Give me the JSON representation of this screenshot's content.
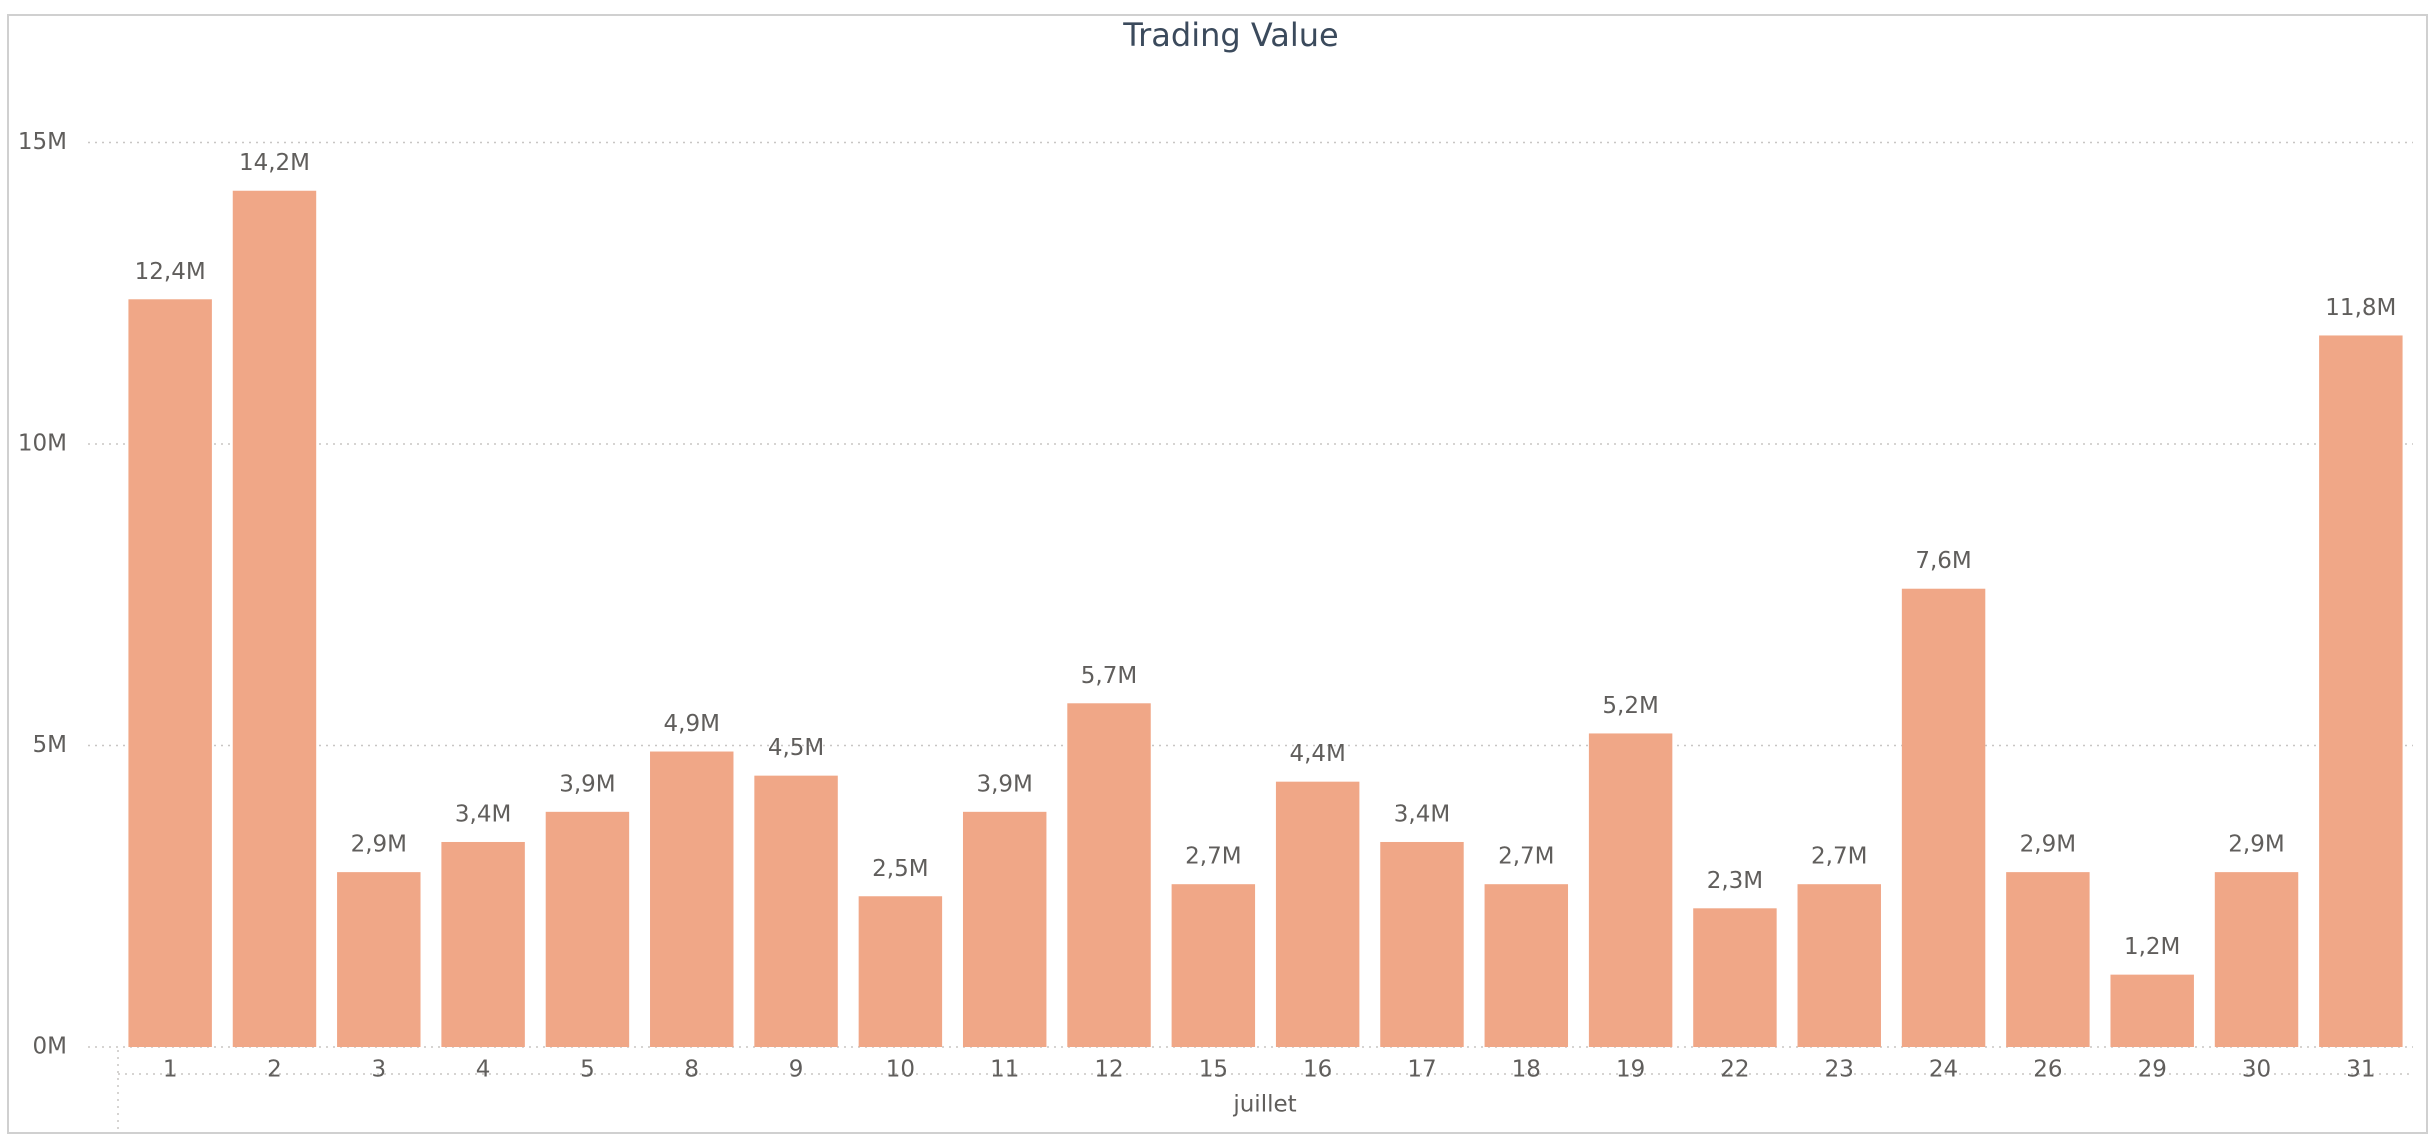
{
  "chart_data": {
    "type": "bar",
    "title": "Trading Value",
    "x_label": "juillet",
    "categories": [
      "1",
      "2",
      "3",
      "4",
      "5",
      "8",
      "9",
      "10",
      "11",
      "12",
      "15",
      "16",
      "17",
      "18",
      "19",
      "22",
      "23",
      "24",
      "26",
      "29",
      "30",
      "31"
    ],
    "values": [
      12.4,
      14.2,
      2.9,
      3.4,
      3.9,
      4.9,
      4.5,
      2.5,
      3.9,
      5.7,
      2.7,
      4.4,
      3.4,
      2.7,
      5.2,
      2.3,
      2.7,
      7.6,
      2.9,
      1.2,
      2.9,
      11.8
    ],
    "value_labels": [
      "12,4M",
      "14,2M",
      "2,9M",
      "3,4M",
      "3,9M",
      "4,9M",
      "4,5M",
      "2,5M",
      "3,9M",
      "5,7M",
      "2,7M",
      "4,4M",
      "3,4M",
      "2,7M",
      "5,2M",
      "2,3M",
      "2,7M",
      "7,6M",
      "2,9M",
      "1,2M",
      "2,9M",
      "11,8M"
    ],
    "color": "#f0a787",
    "ylim": [
      0,
      15
    ],
    "yticks": [
      {
        "value": 0,
        "label": "0M"
      },
      {
        "value": 5,
        "label": "5M"
      },
      {
        "value": 10,
        "label": "10M"
      },
      {
        "value": 15,
        "label": "15M"
      }
    ],
    "grid": true
  }
}
